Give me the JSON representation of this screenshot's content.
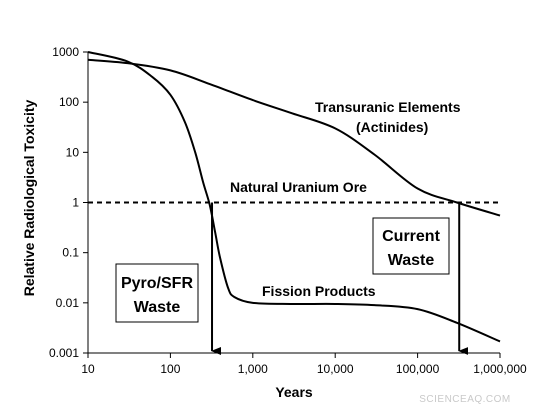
{
  "chart_data": {
    "type": "line",
    "xlabel": "Years",
    "ylabel": "Relative Radiological Toxicity",
    "xscale": "log",
    "yscale": "log",
    "xlim": [
      10,
      1000000
    ],
    "ylim": [
      0.001,
      1000
    ],
    "x_ticks": [
      10,
      100,
      1000,
      10000,
      100000,
      1000000
    ],
    "x_tick_labels": [
      "10",
      "100",
      "1,000",
      "10,000",
      "100,000",
      "1,000,000"
    ],
    "y_ticks": [
      0.001,
      0.01,
      0.1,
      1,
      10,
      100,
      1000
    ],
    "y_tick_labels": [
      "0.001",
      "0.01",
      "0.1",
      "1",
      "10",
      "100",
      "1000"
    ],
    "grid": false,
    "legend": "none",
    "series": [
      {
        "name": "Transuranic Elements (Actinides)",
        "label_lines": [
          "Transuranic Elements",
          "(Actinides)"
        ],
        "points": [
          [
            10,
            700
          ],
          [
            30,
            600
          ],
          [
            100,
            430
          ],
          [
            300,
            230
          ],
          [
            1000,
            110
          ],
          [
            3000,
            60
          ],
          [
            10000,
            30
          ],
          [
            30000,
            9
          ],
          [
            100000,
            1.9
          ],
          [
            300000,
            1.0
          ],
          [
            1000000,
            0.55
          ]
        ],
        "color": "#000000"
      },
      {
        "name": "Fission Products",
        "label_lines": [
          "Fission Products"
        ],
        "points": [
          [
            10,
            1000
          ],
          [
            30,
            650
          ],
          [
            60,
            320
          ],
          [
            100,
            140
          ],
          [
            150,
            40
          ],
          [
            200,
            10
          ],
          [
            250,
            2.5
          ],
          [
            300,
            0.9
          ],
          [
            350,
            0.25
          ],
          [
            400,
            0.08
          ],
          [
            500,
            0.02
          ],
          [
            600,
            0.013
          ],
          [
            1000,
            0.01
          ],
          [
            3000,
            0.0095
          ],
          [
            10000,
            0.0095
          ],
          [
            30000,
            0.009
          ],
          [
            100000,
            0.0075
          ],
          [
            300000,
            0.004
          ],
          [
            1000000,
            0.0017
          ]
        ],
        "color": "#000000"
      }
    ],
    "reference_line": {
      "label": "Natural Uranium Ore",
      "y": 1,
      "style": "dashed"
    },
    "callouts": [
      {
        "lines": [
          "Pyro/SFR",
          "Waste"
        ],
        "points_to_x": 320
      },
      {
        "lines": [
          "Current",
          "Waste"
        ],
        "points_to_x": 320000
      }
    ]
  },
  "watermark": "SCIENCEAQ.COM"
}
